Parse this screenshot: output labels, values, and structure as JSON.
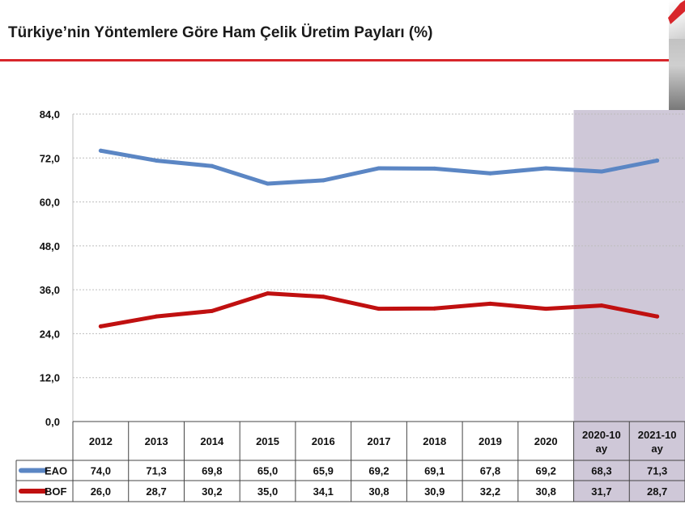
{
  "chart_data": {
    "type": "line",
    "title": "Türkiye’nin Yöntemlere Göre Ham Çelik Üretim Payları  (%)",
    "categories": [
      "2012",
      "2013",
      "2014",
      "2015",
      "2016",
      "2017",
      "2018",
      "2019",
      "2020",
      "2020-10 ay",
      "2021-10 ay"
    ],
    "category_lines": [
      [
        "2012"
      ],
      [
        "2013"
      ],
      [
        "2014"
      ],
      [
        "2015"
      ],
      [
        "2016"
      ],
      [
        "2017"
      ],
      [
        "2018"
      ],
      [
        "2019"
      ],
      [
        "2020"
      ],
      [
        "2020-10",
        "ay"
      ],
      [
        "2021-10",
        "ay"
      ]
    ],
    "ylim": [
      0,
      84
    ],
    "yticks": [
      "0,0",
      "12,0",
      "24,0",
      "36,0",
      "48,0",
      "60,0",
      "72,0",
      "84,0"
    ],
    "grid": true,
    "legend": "data-table-left",
    "highlight_categories": [
      "2020-10 ay",
      "2021-10 ay"
    ],
    "series": [
      {
        "name": "EAO",
        "color": "#5b86c4",
        "values": [
          74.0,
          71.3,
          69.8,
          65.0,
          65.9,
          69.2,
          69.1,
          67.8,
          69.2,
          68.3,
          71.3
        ],
        "labels": [
          "74,0",
          "71,3",
          "69,8",
          "65,0",
          "65,9",
          "69,2",
          "69,1",
          "67,8",
          "69,2",
          "68,3",
          "71,3"
        ]
      },
      {
        "name": "BOF",
        "color": "#c01010",
        "values": [
          26.0,
          28.7,
          30.2,
          35.0,
          34.1,
          30.8,
          30.9,
          32.2,
          30.8,
          31.7,
          28.7
        ],
        "labels": [
          "26,0",
          "28,7",
          "30,2",
          "35,0",
          "34,1",
          "30,8",
          "30,9",
          "32,2",
          "30,8",
          "31,7",
          "28,7"
        ]
      }
    ]
  },
  "colors": {
    "title_rule": "#d8262b",
    "highlight": "#cfc8d8",
    "grid": "#bdbdbd",
    "table_border": "#444444"
  }
}
